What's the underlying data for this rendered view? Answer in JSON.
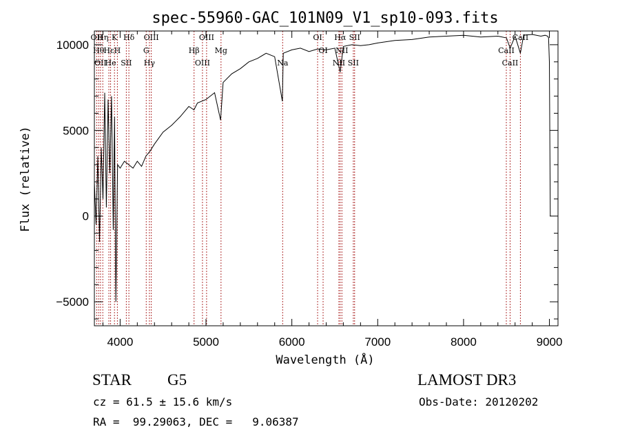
{
  "chart_data": {
    "type": "line",
    "title": "spec-55960-GAC_101N09_V1_sp10-093.fits",
    "xlabel": "Wavelength (Å)",
    "ylabel": "Flux (relative)",
    "xlim": [
      3700,
      9100
    ],
    "ylim": [
      -6400,
      10800
    ],
    "x_ticks": [
      4000,
      5000,
      6000,
      7000,
      8000,
      9000
    ],
    "y_ticks": [
      -5000,
      0,
      5000,
      10000
    ],
    "x_tick_labels": [
      "4000",
      "5000",
      "6000",
      "7000",
      "8000",
      "9000"
    ],
    "y_tick_labels": [
      "−5000",
      "0",
      "5000",
      "10000"
    ],
    "series": [
      {
        "x": [
          3700,
          3720,
          3740,
          3760,
          3780,
          3800,
          3820,
          3840,
          3860,
          3880,
          3900,
          3920,
          3935,
          3950,
          3970,
          4000,
          4050,
          4100,
          4150,
          4200,
          4250,
          4300,
          4350,
          4400,
          4500,
          4600,
          4700,
          4800,
          4860,
          4900,
          5000,
          5100,
          5170,
          5200,
          5300,
          5400,
          5500,
          5600,
          5700,
          5800,
          5890,
          5900,
          6000,
          6100,
          6200,
          6300,
          6400,
          6500,
          6563,
          6600,
          6700,
          6800,
          6900,
          7000,
          7200,
          7400,
          7600,
          7800,
          8000,
          8200,
          8400,
          8500,
          8542,
          8600,
          8662,
          8700,
          8800,
          8900,
          8950,
          8980,
          8990,
          9000,
          9010
        ],
        "y": [
          2000,
          -500,
          3500,
          -1500,
          4000,
          1000,
          7200,
          500,
          6800,
          2500,
          7000,
          -800,
          5800,
          -5000,
          3000,
          2800,
          3200,
          3000,
          2800,
          3200,
          2900,
          3500,
          3800,
          4200,
          4900,
          5300,
          5800,
          6400,
          6200,
          6600,
          6800,
          7200,
          5600,
          7800,
          8300,
          8600,
          9000,
          9200,
          9500,
          9300,
          6700,
          9500,
          9700,
          9800,
          9600,
          9750,
          9700,
          9800,
          8400,
          9900,
          10000,
          9950,
          10000,
          10100,
          10250,
          10300,
          10450,
          10500,
          10550,
          10450,
          10500,
          10400,
          9800,
          10500,
          9500,
          10550,
          10600,
          10500,
          10550,
          10500,
          10400,
          9000,
          0
        ]
      }
    ],
    "lines": [
      {
        "x": 3727,
        "label": "OII"
      },
      {
        "x": 3750,
        "label": "Hθ"
      },
      {
        "x": 3771,
        "label": "OII"
      },
      {
        "x": 3798,
        "label": "Hη"
      },
      {
        "x": 3869,
        "label": "Hε"
      },
      {
        "x": 3889,
        "label": "He"
      },
      {
        "x": 3934,
        "label": "K"
      },
      {
        "x": 3968,
        "label": "H"
      },
      {
        "x": 4072,
        "label": "SII"
      },
      {
        "x": 4102,
        "label": "Hδ"
      },
      {
        "x": 4304,
        "label": "G"
      },
      {
        "x": 4341,
        "label": "Hγ"
      },
      {
        "x": 4363,
        "label": "OIII"
      },
      {
        "x": 4861,
        "label": "Hβ"
      },
      {
        "x": 4959,
        "label": "OIII"
      },
      {
        "x": 5007,
        "label": "OIII"
      },
      {
        "x": 5175,
        "label": "Mg"
      },
      {
        "x": 5893,
        "label": "Na"
      },
      {
        "x": 6300,
        "label": "OI"
      },
      {
        "x": 6364,
        "label": "OI"
      },
      {
        "x": 6548,
        "label": "NII"
      },
      {
        "x": 6563,
        "label": "Hα"
      },
      {
        "x": 6583,
        "label": "NII"
      },
      {
        "x": 6716,
        "label": "SII"
      },
      {
        "x": 6731,
        "label": "SII"
      },
      {
        "x": 8498,
        "label": "CaII"
      },
      {
        "x": 8542,
        "label": "CaII"
      },
      {
        "x": 8662,
        "label": "CaII"
      }
    ],
    "grid": false
  },
  "info": {
    "object_class": "STAR",
    "subclass": "G5",
    "survey": "LAMOST DR3",
    "cz": "cz = 61.5 ± 15.6 km/s",
    "obs_date": "Obs-Date: 20120202",
    "radec": "RA =  99.29063, DEC =   9.06387"
  },
  "colors": {
    "spectrum": "#000000",
    "line_marker": "#b03030",
    "axes": "#000000"
  }
}
